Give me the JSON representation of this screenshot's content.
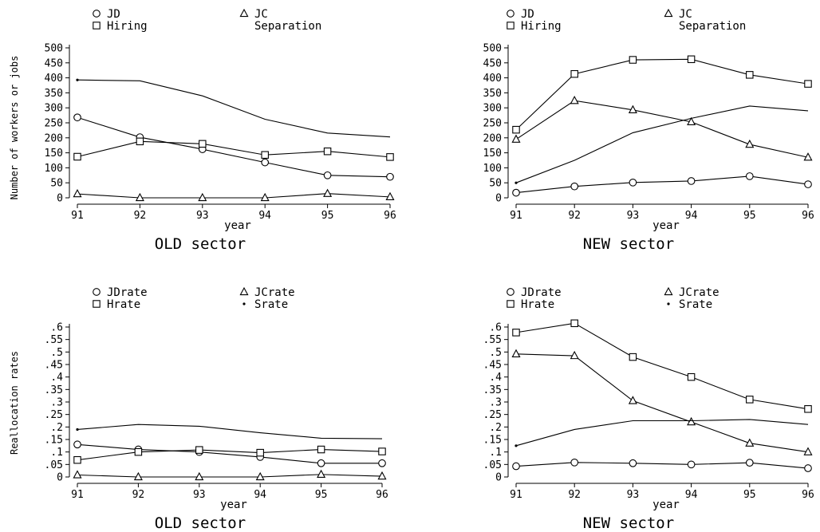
{
  "chart_data": [
    {
      "type": "line",
      "title": "OLD sector",
      "xlabel": "year",
      "ylabel": "Number of workers or jobs",
      "categories": [
        "91",
        "92",
        "93",
        "94",
        "95",
        "96"
      ],
      "yticks": [
        "0",
        "50",
        "100",
        "150",
        "200",
        "250",
        "300",
        "350",
        "400",
        "450",
        "500"
      ],
      "ylim": [
        0,
        500
      ],
      "legend": [
        {
          "label": "JD",
          "marker": "circle"
        },
        {
          "label": "JC",
          "marker": "triangle"
        },
        {
          "label": "Hiring",
          "marker": "square"
        },
        {
          "label": "Separation",
          "marker": "none"
        }
      ],
      "series": [
        {
          "name": "JD",
          "marker": "circle",
          "values": [
            268,
            202,
            162,
            118,
            75,
            70
          ]
        },
        {
          "name": "JC",
          "marker": "triangle",
          "values": [
            13,
            0,
            0,
            0,
            14,
            3
          ]
        },
        {
          "name": "Hiring",
          "marker": "square",
          "values": [
            137,
            188,
            180,
            143,
            155,
            136
          ]
        },
        {
          "name": "Separation",
          "marker": "dot-first",
          "values": [
            393,
            390,
            340,
            262,
            216,
            203
          ]
        }
      ]
    },
    {
      "type": "line",
      "title": "NEW sector",
      "xlabel": "year",
      "ylabel": "",
      "categories": [
        "91",
        "92",
        "93",
        "94",
        "95",
        "96"
      ],
      "yticks": [
        "0",
        "50",
        "100",
        "150",
        "200",
        "250",
        "300",
        "350",
        "400",
        "450",
        "500"
      ],
      "ylim": [
        0,
        500
      ],
      "legend": [
        {
          "label": "JD",
          "marker": "circle"
        },
        {
          "label": "JC",
          "marker": "triangle"
        },
        {
          "label": "Hiring",
          "marker": "square"
        },
        {
          "label": "Separation",
          "marker": "none"
        }
      ],
      "series": [
        {
          "name": "JD",
          "marker": "circle",
          "values": [
            17,
            38,
            51,
            56,
            72,
            45
          ]
        },
        {
          "name": "JC",
          "marker": "triangle",
          "values": [
            195,
            324,
            293,
            253,
            178,
            135
          ]
        },
        {
          "name": "Hiring",
          "marker": "square",
          "values": [
            227,
            413,
            460,
            462,
            410,
            380
          ]
        },
        {
          "name": "Separation",
          "marker": "dot-first",
          "values": [
            50,
            125,
            217,
            265,
            306,
            290
          ]
        }
      ]
    },
    {
      "type": "line",
      "title": "OLD sector",
      "xlabel": "year",
      "ylabel": "Reallocation rates",
      "categories": [
        "91",
        "92",
        "93",
        "94",
        "95",
        "96"
      ],
      "yticks": [
        "0",
        ".05",
        ".1",
        ".15",
        ".2",
        ".25",
        ".3",
        ".35",
        ".4",
        ".45",
        ".5",
        ".55",
        ".6"
      ],
      "ylim": [
        0,
        0.6
      ],
      "legend": [
        {
          "label": "JDrate",
          "marker": "circle"
        },
        {
          "label": "JCrate",
          "marker": "triangle"
        },
        {
          "label": "Hrate",
          "marker": "square"
        },
        {
          "label": "Srate",
          "marker": "dot"
        }
      ],
      "series": [
        {
          "name": "JDrate",
          "marker": "circle",
          "values": [
            0.13,
            0.11,
            0.1,
            0.08,
            0.055,
            0.055
          ]
        },
        {
          "name": "JCrate",
          "marker": "triangle",
          "values": [
            0.008,
            0,
            0,
            0,
            0.01,
            0.003
          ]
        },
        {
          "name": "Hrate",
          "marker": "square",
          "values": [
            0.068,
            0.1,
            0.108,
            0.097,
            0.11,
            0.102
          ]
        },
        {
          "name": "Srate",
          "marker": "dot-first",
          "values": [
            0.19,
            0.21,
            0.203,
            0.177,
            0.155,
            0.153
          ]
        }
      ]
    },
    {
      "type": "line",
      "title": "NEW sector",
      "xlabel": "year",
      "ylabel": "",
      "categories": [
        "91",
        "92",
        "93",
        "94",
        "95",
        "96"
      ],
      "yticks": [
        "0",
        ".05",
        ".1",
        ".15",
        ".2",
        ".25",
        ".3",
        ".35",
        ".4",
        ".45",
        ".5",
        ".55",
        ".6"
      ],
      "ylim": [
        0,
        0.6
      ],
      "legend": [
        {
          "label": "JDrate",
          "marker": "circle"
        },
        {
          "label": "JCrate",
          "marker": "triangle"
        },
        {
          "label": "Hrate",
          "marker": "square"
        },
        {
          "label": "Srate",
          "marker": "dot"
        }
      ],
      "series": [
        {
          "name": "JDrate",
          "marker": "circle",
          "values": [
            0.043,
            0.058,
            0.055,
            0.05,
            0.057,
            0.035
          ]
        },
        {
          "name": "JCrate",
          "marker": "triangle",
          "values": [
            0.492,
            0.485,
            0.305,
            0.22,
            0.135,
            0.1
          ]
        },
        {
          "name": "Hrate",
          "marker": "square",
          "values": [
            0.578,
            0.615,
            0.48,
            0.4,
            0.31,
            0.272
          ]
        },
        {
          "name": "Srate",
          "marker": "dot-first",
          "values": [
            0.125,
            0.19,
            0.225,
            0.225,
            0.23,
            0.21
          ]
        }
      ]
    }
  ]
}
